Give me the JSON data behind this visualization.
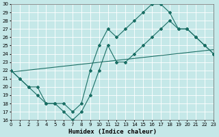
{
  "xlabel": "Humidex (Indice chaleur)",
  "xlim": [
    0,
    23
  ],
  "ylim": [
    16,
    30
  ],
  "xticks": [
    0,
    1,
    2,
    3,
    4,
    5,
    6,
    7,
    8,
    9,
    10,
    11,
    12,
    13,
    14,
    15,
    16,
    17,
    18,
    19,
    20,
    21,
    22,
    23
  ],
  "yticks": [
    16,
    17,
    18,
    19,
    20,
    21,
    22,
    23,
    24,
    25,
    26,
    27,
    28,
    29,
    30
  ],
  "background_color": "#c5e8e8",
  "line_color": "#1a6e64",
  "grid_color": "#ffffff",
  "line1_x": [
    0,
    1,
    2,
    3,
    4,
    5,
    6,
    7,
    8,
    9,
    10,
    11,
    12,
    13,
    14,
    15,
    16,
    17,
    18,
    19,
    20,
    21,
    22,
    23
  ],
  "line1_y": [
    22,
    21,
    20,
    19,
    18,
    18,
    17,
    16,
    17,
    19,
    22,
    25,
    23,
    23,
    24,
    25,
    26,
    27,
    28,
    27,
    27,
    26,
    25,
    24
  ],
  "line2_x": [
    0,
    1,
    2,
    3,
    4,
    5,
    6,
    7,
    8,
    9,
    10,
    11,
    12,
    13,
    14,
    15,
    16,
    17,
    18,
    19,
    20,
    21,
    22,
    23
  ],
  "line2_y": [
    22,
    21,
    20,
    20,
    18,
    18,
    18,
    17,
    18,
    22,
    25,
    27,
    26,
    27,
    28,
    29,
    30,
    30,
    29,
    27,
    27,
    26,
    25,
    24
  ],
  "line3_x": [
    0,
    23
  ],
  "line3_y": [
    21.8,
    24.5
  ]
}
